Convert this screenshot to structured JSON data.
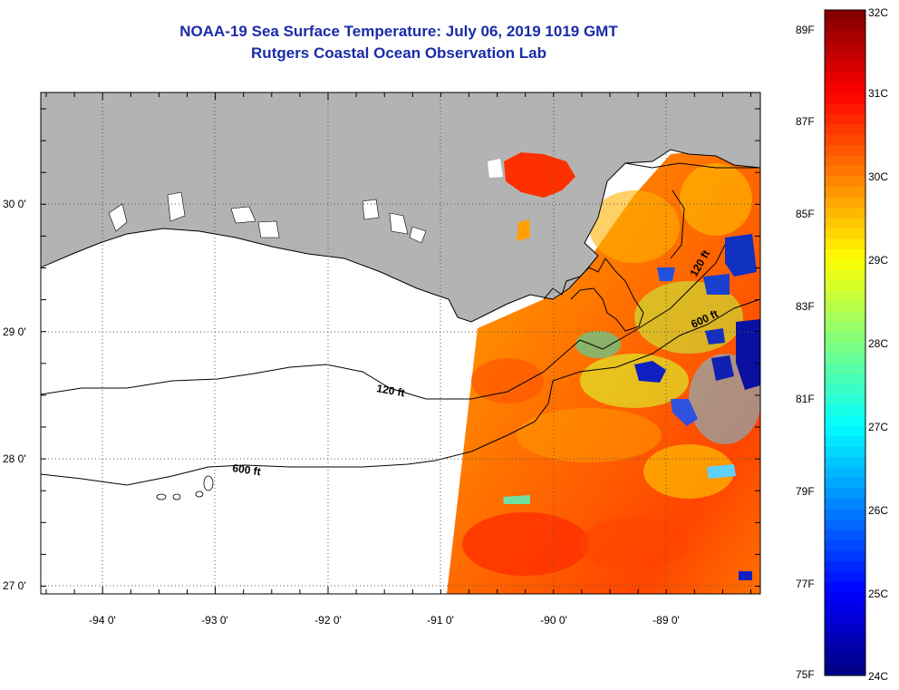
{
  "title": {
    "line1": "NOAA-19 Sea Surface Temperature:  July 06, 2019 1019 GMT",
    "line2": "Rutgers Coastal Ocean Observation Lab"
  },
  "map": {
    "lon_labels": [
      "-94 0'",
      "-93 0'",
      "-92 0'",
      "-91 0'",
      "-90 0'",
      "-89 0'"
    ],
    "lat_labels": [
      "30 0'",
      "29 0'",
      "28 0'",
      "27 0'"
    ],
    "contour_labels": [
      "120 ft",
      "600 ft",
      "120 ft",
      "600 ft"
    ],
    "colors": {
      "land": "#b3b3b3",
      "ocean_nodata": "#ffffff",
      "coastline": "#000000",
      "graticule": "#555555"
    }
  },
  "colorbar": {
    "celsius_labels": [
      "32C",
      "31C",
      "30C",
      "29C",
      "28C",
      "27C",
      "26C",
      "25C",
      "24C"
    ],
    "fahrenheit_labels": [
      "89F",
      "87F",
      "85F",
      "83F",
      "81F",
      "79F",
      "77F",
      "75F"
    ],
    "range_c": [
      24,
      32
    ],
    "range_f": [
      75,
      89.6
    ],
    "colormap": [
      "#00007f",
      "#0000ff",
      "#007fff",
      "#00ffff",
      "#7fff7f",
      "#ffff00",
      "#ff7f00",
      "#ff0000",
      "#7f0000"
    ]
  }
}
